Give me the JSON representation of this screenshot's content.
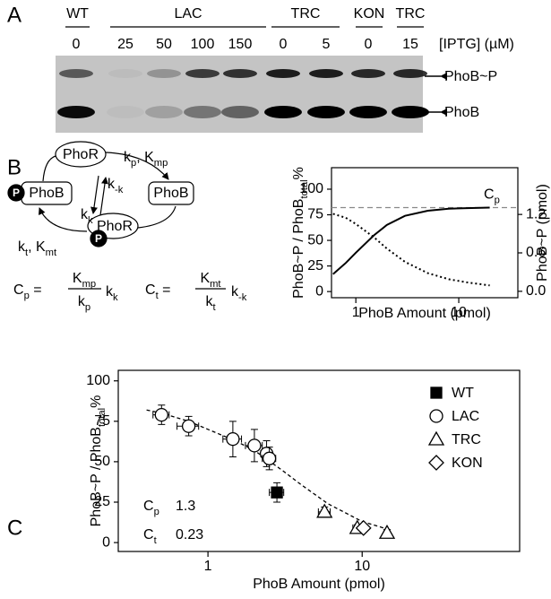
{
  "panel_a": {
    "label": "A",
    "groups": [
      "WT",
      "LAC",
      "TRC",
      "KON",
      "TRC"
    ],
    "iptg": [
      0,
      25,
      50,
      100,
      150,
      0,
      5,
      0,
      15
    ],
    "iptg_label": "[IPTG] (µM)",
    "bands": [
      "PhoB~P",
      "PhoB"
    ]
  },
  "panel_b": {
    "label": "B",
    "nodes": [
      "PhoR",
      "PhoB",
      "PhoB",
      "PhoR"
    ],
    "phospho": [
      "P",
      "P"
    ],
    "rate_top": [
      {
        "text": "k"
      },
      {
        "text": "p",
        "sub": true
      },
      {
        "text": ", K"
      },
      {
        "text": "mp",
        "sub": true
      }
    ],
    "rate_minus": [
      {
        "text": "k"
      },
      {
        "text": "-k",
        "sub": true
      }
    ],
    "rate_k": [
      {
        "text": "k"
      },
      {
        "text": "k",
        "sub": true
      }
    ],
    "rate_bottom": [
      {
        "text": "k"
      },
      {
        "text": "t",
        "sub": true
      },
      {
        "text": ", K"
      },
      {
        "text": "mt",
        "sub": true
      }
    ],
    "cp_lhs": [
      {
        "text": "C"
      },
      {
        "text": "p",
        "sub": true
      },
      {
        "text": " ="
      }
    ],
    "cp_num": [
      {
        "text": "K"
      },
      {
        "text": "mp",
        "sub": true
      }
    ],
    "cp_den": [
      {
        "text": "k"
      },
      {
        "text": "p",
        "sub": true
      }
    ],
    "cp_factor": [
      {
        "text": "k"
      },
      {
        "text": "k",
        "sub": true
      }
    ],
    "ct_lhs": [
      {
        "text": "C"
      },
      {
        "text": "t",
        "sub": true
      },
      {
        "text": " ="
      }
    ],
    "ct_num": [
      {
        "text": "K"
      },
      {
        "text": "mt",
        "sub": true
      }
    ],
    "ct_den": [
      {
        "text": "k"
      },
      {
        "text": "t",
        "sub": true
      }
    ],
    "ct_factor": [
      {
        "text": "k"
      },
      {
        "text": "-k",
        "sub": true
      }
    ]
  },
  "panel_c": {
    "label": "C"
  },
  "chart_data": [
    {
      "type": "line",
      "x_label": "PhoB Amount (pmol)",
      "y_label": [
        {
          "text": "PhoB~P / PhoB"
        },
        {
          "text": "total",
          "sub": true
        },
        {
          "text": "%"
        }
      ],
      "y2_label": "PhoB~P (pmol)",
      "xscale": "log",
      "xlim": [
        0.58,
        37.5
      ],
      "xticks": [
        1,
        10
      ],
      "ylim": [
        -6,
        121
      ],
      "yticks": [
        0,
        25,
        50,
        75,
        100
      ],
      "y2lim": [
        -0.1,
        1.93
      ],
      "y2ticks": [
        {
          "value": 0,
          "label": "0.0"
        },
        0.6,
        1.2
      ],
      "series": [
        {
          "color": "#000000",
          "style": "solid",
          "x": [
            0.6,
            0.8,
            1,
            1.5,
            2,
            3,
            5,
            8,
            12,
            20
          ],
          "values": [
            17,
            28,
            38,
            55,
            65,
            74,
            79,
            81,
            81.5,
            82
          ]
        },
        {
          "color": "#000000",
          "style": "dotted",
          "x": [
            0.6,
            0.8,
            1,
            1.5,
            2,
            3,
            5,
            8,
            12,
            20
          ],
          "values": [
            76,
            72,
            66,
            53,
            42,
            29,
            18,
            12,
            9,
            6
          ]
        }
      ],
      "reference_line": {
        "value": 82,
        "color": "#888888",
        "label": [
          {
            "text": "C"
          },
          {
            "text": "p",
            "sub": true
          }
        ]
      }
    },
    {
      "type": "scatter",
      "x_label": "PhoB Amount (pmol)",
      "y_label": [
        {
          "text": "PhoB~P / PhoB"
        },
        {
          "text": "total",
          "sub": true
        },
        {
          "text": "%"
        }
      ],
      "xscale": "log",
      "xlim": [
        0.262,
        105
      ],
      "xticks": [
        1,
        10
      ],
      "ylim": [
        -5.5,
        106.5
      ],
      "yticks": [
        0,
        25,
        50,
        75,
        100
      ],
      "legend": "upper right",
      "fit": {
        "color": "#000000",
        "x": [
          0.4,
          0.5,
          0.75,
          1,
          1.5,
          2,
          3,
          4,
          6,
          10,
          15
        ],
        "values": [
          82,
          80,
          75,
          70,
          63,
          57,
          45,
          36,
          24,
          13,
          8
        ]
      },
      "series": [
        {
          "name": "WT",
          "marker": "square",
          "filled": true,
          "color": "#000000",
          "x": [
            2.8
          ],
          "values": [
            31
          ],
          "xerr": [
            0.3
          ],
          "yerr": [
            6
          ]
        },
        {
          "name": "LAC",
          "marker": "circle",
          "filled": false,
          "color": "#000000",
          "x": [
            0.5,
            0.75,
            1.45,
            2.0,
            2.4,
            2.5
          ],
          "values": [
            79,
            72,
            64,
            60,
            55,
            52
          ],
          "xerr": [
            0.06,
            0.12,
            0.2,
            0.25,
            0.2,
            0.25
          ],
          "yerr": [
            6,
            6,
            11,
            10,
            8,
            7
          ]
        },
        {
          "name": "TRC",
          "marker": "triangle",
          "filled": false,
          "color": "#000000",
          "x": [
            5.7,
            9.3,
            14.5
          ],
          "values": [
            19,
            9,
            6
          ],
          "xerr": [
            0.5,
            0.6,
            0.6
          ],
          "yerr": [
            3,
            2,
            2
          ]
        },
        {
          "name": "KON",
          "marker": "diamond",
          "filled": false,
          "color": "#000000",
          "x": [
            10.2
          ],
          "values": [
            9
          ],
          "xerr": [
            0.5
          ],
          "yerr": [
            2
          ]
        }
      ],
      "annotations": [
        {
          "name": [
            {
              "text": "C"
            },
            {
              "text": "p",
              "sub": true
            }
          ],
          "value": 1.3
        },
        {
          "name": [
            {
              "text": "C"
            },
            {
              "text": "t",
              "sub": true
            }
          ],
          "value": 0.23
        }
      ]
    }
  ]
}
